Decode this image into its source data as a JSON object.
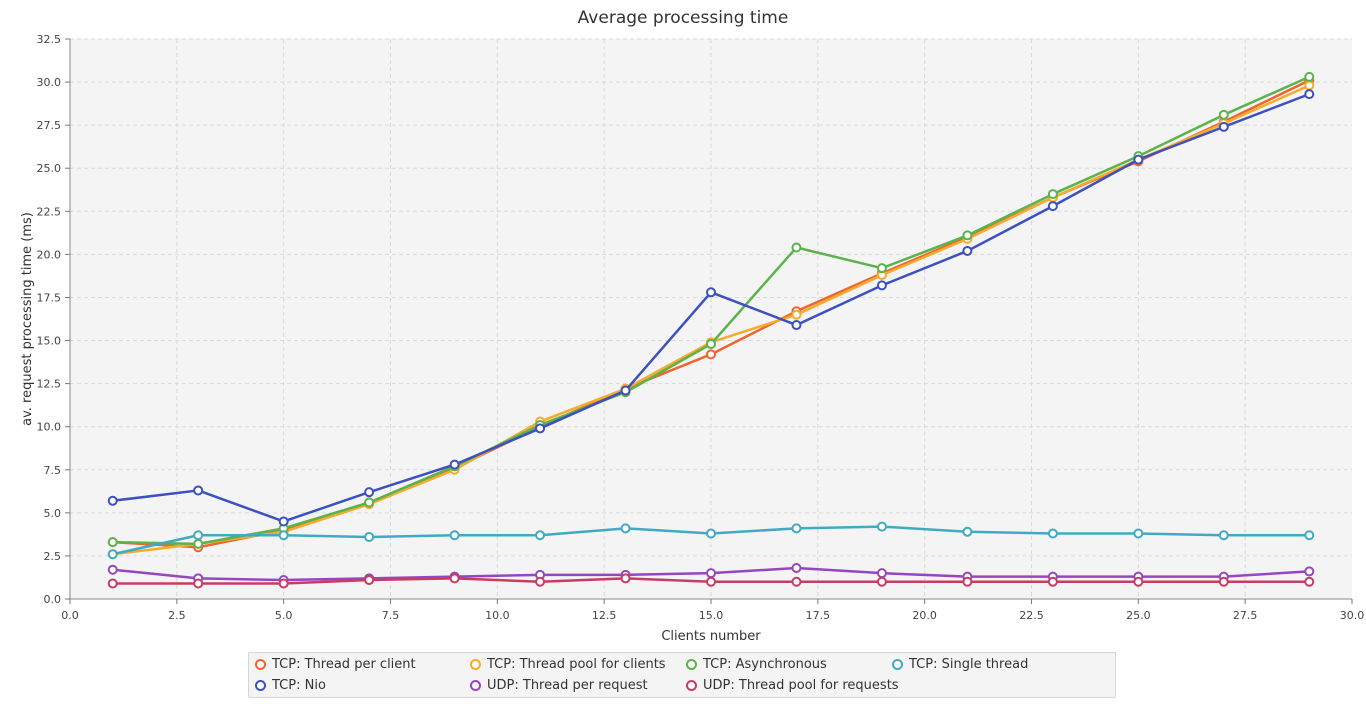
{
  "chart_data": {
    "type": "line",
    "title": "Average processing time",
    "xlabel": "Clients number",
    "ylabel": "av. request processing time (ms)",
    "xlim": [
      0,
      30
    ],
    "ylim": [
      0,
      32.5
    ],
    "x_ticks": [
      "0.0",
      "2.5",
      "5.0",
      "7.5",
      "10.0",
      "12.5",
      "15.0",
      "17.5",
      "20.0",
      "22.5",
      "25.0",
      "27.5",
      "30.0"
    ],
    "y_ticks": [
      "0.0",
      "2.5",
      "5.0",
      "7.5",
      "10.0",
      "12.5",
      "15.0",
      "17.5",
      "20.0",
      "22.5",
      "25.0",
      "27.5",
      "30.0",
      "32.5"
    ],
    "grid": true,
    "legend_position": "bottom",
    "x": [
      1,
      3,
      5,
      7,
      9,
      11,
      13,
      15,
      17,
      19,
      21,
      23,
      25,
      27,
      29
    ],
    "series": [
      {
        "name": "TCP: Thread per client",
        "color": "#f0642d",
        "values": [
          3.3,
          3.0,
          4.0,
          5.6,
          7.6,
          10.0,
          12.2,
          14.2,
          16.7,
          18.9,
          21.0,
          23.3,
          25.4,
          27.7,
          30.1
        ]
      },
      {
        "name": "TCP: Thread pool for clients",
        "color": "#f5ab2d",
        "values": [
          2.6,
          3.2,
          3.9,
          5.5,
          7.5,
          10.3,
          12.2,
          14.9,
          16.5,
          18.8,
          20.9,
          23.3,
          25.5,
          27.6,
          29.8
        ]
      },
      {
        "name": "TCP: Asynchronous",
        "color": "#5ab44b",
        "values": [
          3.3,
          3.2,
          4.1,
          5.6,
          7.7,
          10.1,
          12.0,
          14.8,
          20.4,
          19.2,
          21.1,
          23.5,
          25.7,
          28.1,
          30.3
        ]
      },
      {
        "name": "TCP: Single thread",
        "color": "#41aac3",
        "values": [
          2.6,
          3.7,
          3.7,
          3.6,
          3.7,
          3.7,
          4.1,
          3.8,
          4.1,
          4.2,
          3.9,
          3.8,
          3.8,
          3.7,
          3.7
        ]
      },
      {
        "name": "TCP: Nio",
        "color": "#3c50be",
        "values": [
          5.7,
          6.3,
          4.5,
          6.2,
          7.8,
          9.9,
          12.1,
          17.8,
          15.9,
          18.2,
          20.2,
          22.8,
          25.5,
          27.4,
          29.3
        ]
      },
      {
        "name": "UDP: Thread per request",
        "color": "#9646be",
        "values": [
          1.7,
          1.2,
          1.1,
          1.2,
          1.3,
          1.4,
          1.4,
          1.5,
          1.8,
          1.5,
          1.3,
          1.3,
          1.3,
          1.3,
          1.6
        ]
      },
      {
        "name": "UDP: Thread pool for requests",
        "color": "#c83c64",
        "values": [
          0.9,
          0.9,
          0.9,
          1.1,
          1.2,
          1.0,
          1.2,
          1.0,
          1.0,
          1.0,
          1.0,
          1.0,
          1.0,
          1.0,
          1.0
        ]
      }
    ]
  }
}
